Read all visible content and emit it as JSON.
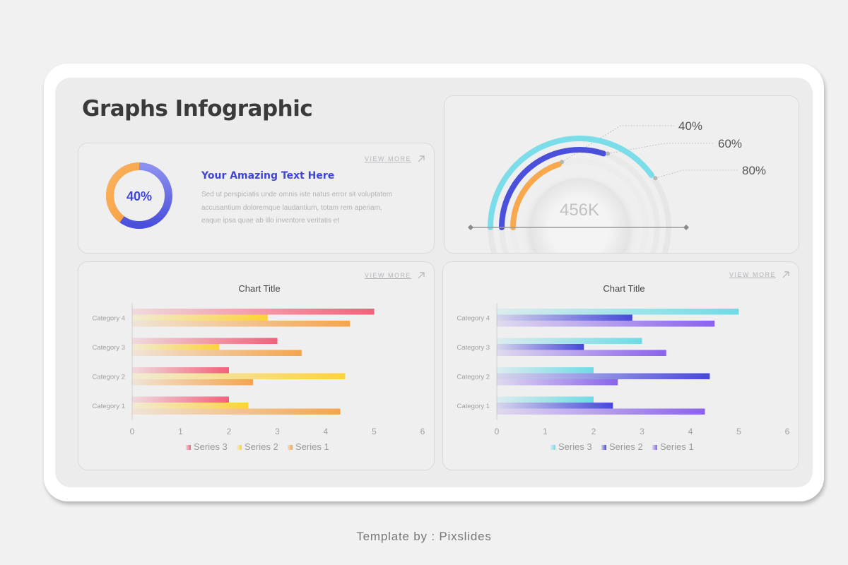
{
  "page": {
    "title": "Graphs Infographic",
    "footer": "Template by : Pixslides",
    "view_more": "VIEW MORE"
  },
  "info_card": {
    "heading": "Your Amazing Text Here",
    "body": "Sed ut perspiciatis unde omnis iste natus  error sit voluptatem accusantium  doloremque laudantium, totam rem aperiam, eaque ipsa quae ab illo inventore veritatis et",
    "donut_label": "40%",
    "donut_percent": 40,
    "colors": {
      "orange": "#f9a84d",
      "blue": "#4a4fdc"
    }
  },
  "gauge": {
    "center_label": "456K",
    "arcs": [
      {
        "label": "40%",
        "value": 40,
        "color": "#f9a84d"
      },
      {
        "label": "60%",
        "value": 60,
        "color": "#4a4fdc"
      },
      {
        "label": "80%",
        "value": 80,
        "color": "#7bdde9"
      }
    ]
  },
  "chart_data": [
    {
      "type": "bar",
      "orientation": "horizontal",
      "title": "Chart Title",
      "categories": [
        "Category 1",
        "Category 2",
        "Category 3",
        "Category 4"
      ],
      "series": [
        {
          "name": "Series 3",
          "values": [
            2,
            2,
            3,
            5
          ],
          "color": "#f3607a"
        },
        {
          "name": "Series 2",
          "values": [
            2.4,
            4.4,
            1.8,
            2.8
          ],
          "color": "#fcd23a"
        },
        {
          "name": "Series 1",
          "values": [
            4.3,
            2.5,
            3.5,
            4.5
          ],
          "color": "#f5a44d"
        }
      ],
      "xlim": [
        0,
        6
      ],
      "xticks": [
        "0",
        "1",
        "2",
        "3",
        "4",
        "5",
        "6"
      ],
      "legend": "bottom",
      "grid": false
    },
    {
      "type": "bar",
      "orientation": "horizontal",
      "title": "Chart Title",
      "categories": [
        "Category 1",
        "Category 2",
        "Category 3",
        "Category 4"
      ],
      "series": [
        {
          "name": "Series 3",
          "values": [
            2,
            2,
            3,
            5
          ],
          "color": "#6fdbe6"
        },
        {
          "name": "Series 2",
          "values": [
            2.4,
            4.4,
            1.8,
            2.8
          ],
          "color": "#4748d9"
        },
        {
          "name": "Series 1",
          "values": [
            4.3,
            2.5,
            3.5,
            4.5
          ],
          "color": "#8a62ec"
        }
      ],
      "xlim": [
        0,
        6
      ],
      "xticks": [
        "0",
        "1",
        "2",
        "3",
        "4",
        "5",
        "6"
      ],
      "legend": "bottom",
      "grid": false
    }
  ]
}
